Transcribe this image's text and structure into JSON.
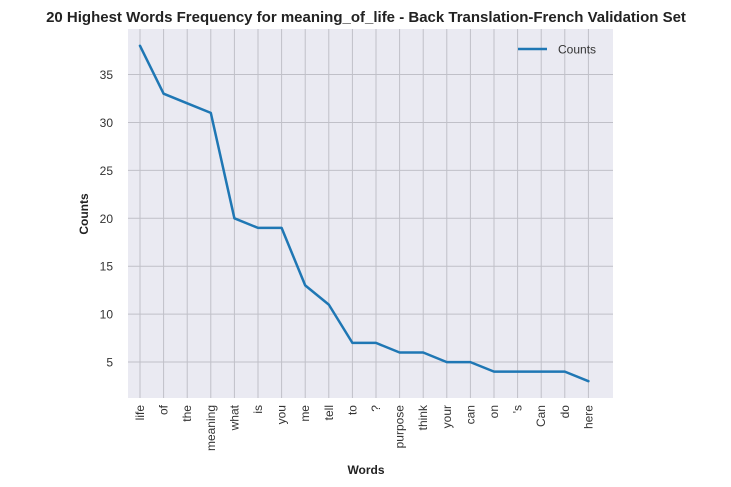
{
  "chart_data": {
    "type": "line",
    "title": "20 Highest Words Frequency for meaning_of_life - Back Translation-French Validation Set",
    "xlabel": "Words",
    "ylabel": "Counts",
    "categories": [
      "life",
      "of",
      "the",
      "meaning",
      "what",
      "is",
      "you",
      "me",
      "tell",
      "to",
      "?",
      "purpose",
      "think",
      "your",
      "can",
      "on",
      "'s",
      "Can",
      "do",
      "here"
    ],
    "series": [
      {
        "name": "Counts",
        "values": [
          38,
          33,
          32,
          31,
          20,
          19,
          19,
          13,
          11,
          7,
          7,
          6,
          6,
          5,
          5,
          4,
          4,
          4,
          4,
          3
        ]
      }
    ],
    "yticks": [
      5,
      10,
      15,
      20,
      25,
      30,
      35
    ],
    "ylim": [
      1.25,
      39.75
    ],
    "grid": true,
    "legend": "top-right",
    "colors": {
      "line": "#1f77b4",
      "background": "#eaeaf2",
      "grid": "#c0c0c8"
    }
  }
}
